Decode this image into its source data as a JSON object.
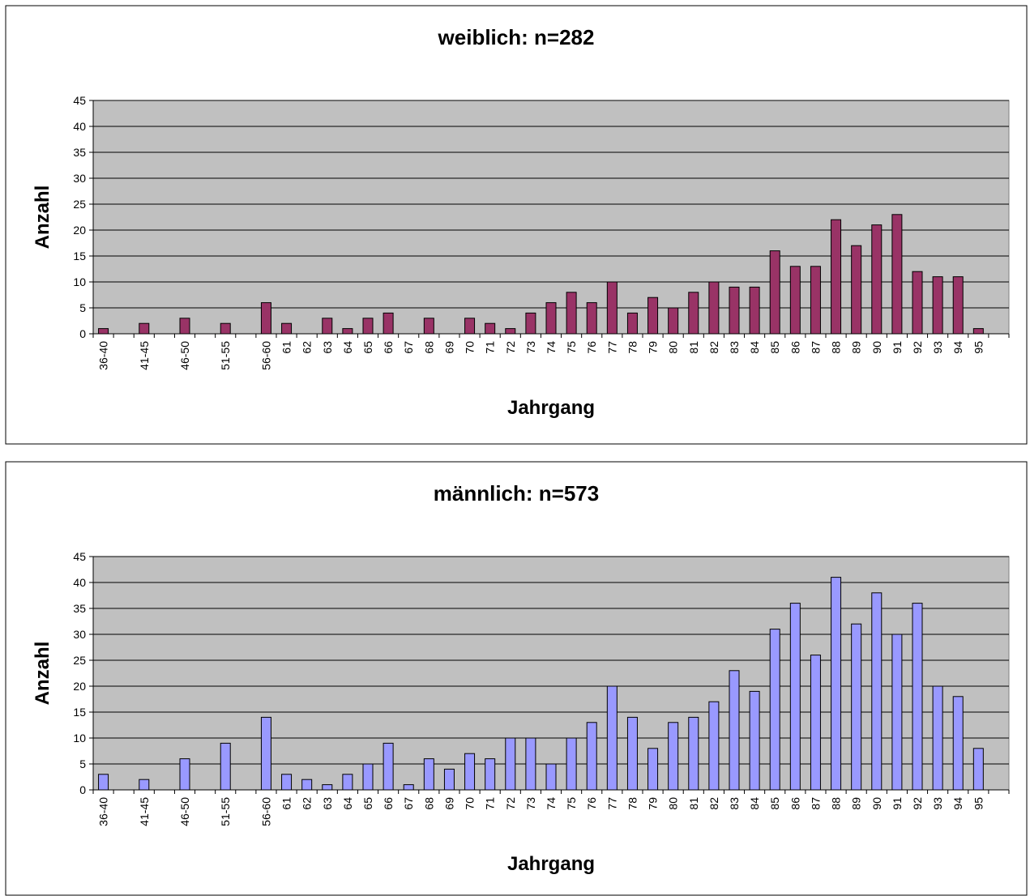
{
  "chart_data": [
    {
      "type": "bar",
      "title": "weiblich: n=282",
      "x_label": "Jahrgang",
      "y_label": "Anzahl",
      "categories": [
        "36-40",
        null,
        "41-45",
        null,
        "46-50",
        null,
        "51-55",
        null,
        "56-60",
        "61",
        "62",
        "63",
        "64",
        "65",
        "66",
        "67",
        "68",
        "69",
        "70",
        "71",
        "72",
        "73",
        "74",
        "75",
        "76",
        "77",
        "78",
        "79",
        "80",
        "81",
        "82",
        "83",
        "84",
        "85",
        "86",
        "87",
        "88",
        "89",
        "90",
        "91",
        "92",
        "93",
        "94",
        "95",
        null
      ],
      "values": [
        1,
        null,
        2,
        null,
        3,
        null,
        2,
        null,
        6,
        2,
        0,
        3,
        1,
        3,
        4,
        0,
        3,
        0,
        3,
        2,
        1,
        4,
        6,
        8,
        6,
        10,
        4,
        7,
        5,
        8,
        10,
        9,
        9,
        16,
        13,
        13,
        22,
        17,
        21,
        23,
        12,
        11,
        11,
        1,
        null
      ],
      "color": "#993366",
      "ylim": [
        0,
        45
      ],
      "yticks": [
        0,
        5,
        10,
        15,
        20,
        25,
        30,
        35,
        40,
        45
      ],
      "grid": true
    },
    {
      "type": "bar",
      "title": "männlich: n=573",
      "x_label": "Jahrgang",
      "y_label": "Anzahl",
      "categories": [
        "36-40",
        null,
        "41-45",
        null,
        "46-50",
        null,
        "51-55",
        null,
        "56-60",
        "61",
        "62",
        "63",
        "64",
        "65",
        "66",
        "67",
        "68",
        "69",
        "70",
        "71",
        "72",
        "73",
        "74",
        "75",
        "76",
        "77",
        "78",
        "79",
        "80",
        "81",
        "82",
        "83",
        "84",
        "85",
        "86",
        "87",
        "88",
        "89",
        "90",
        "91",
        "92",
        "93",
        "94",
        "95",
        null
      ],
      "values": [
        3,
        null,
        2,
        null,
        6,
        null,
        9,
        null,
        14,
        3,
        2,
        1,
        3,
        5,
        9,
        1,
        6,
        4,
        7,
        6,
        10,
        10,
        5,
        10,
        13,
        20,
        14,
        8,
        13,
        14,
        17,
        23,
        19,
        31,
        36,
        26,
        41,
        32,
        38,
        30,
        36,
        20,
        18,
        8,
        null
      ],
      "color": "#9999ff",
      "ylim": [
        0,
        45
      ],
      "yticks": [
        0,
        5,
        10,
        15,
        20,
        25,
        30,
        35,
        40,
        45
      ],
      "grid": true
    }
  ]
}
